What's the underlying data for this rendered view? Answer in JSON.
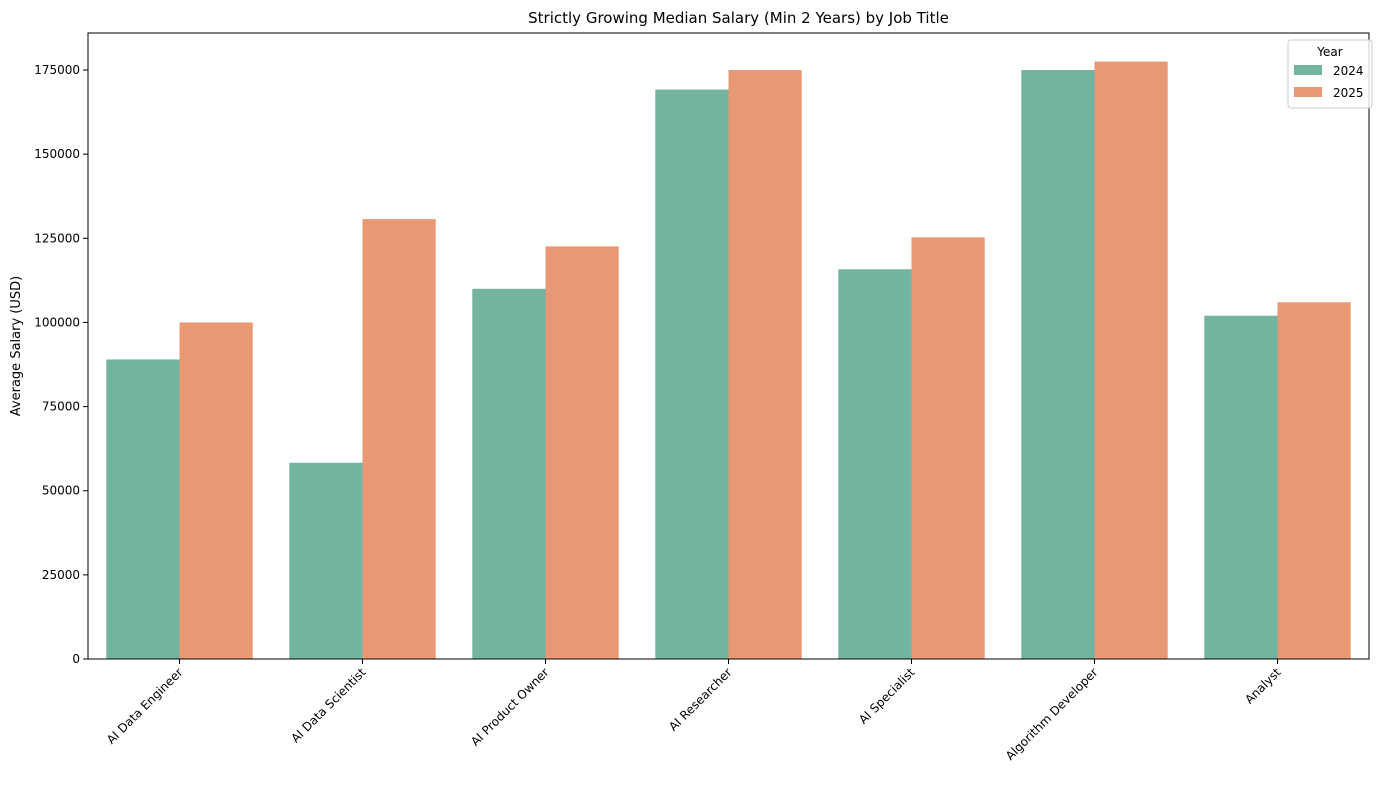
{
  "chart_data": {
    "type": "bar",
    "title": "Strictly Growing Median Salary (Min 2 Years) by Job Title",
    "xlabel": "",
    "ylabel": "Average Salary (USD)",
    "categories": [
      "AI Data Engineer",
      "AI Data Scientist",
      "AI Product Owner",
      "AI Researcher",
      "AI Specialist",
      "Algorithm Developer",
      "Analyst"
    ],
    "series": [
      {
        "name": "2024",
        "color": "#72b4a0",
        "values": [
          89000,
          58300,
          110000,
          169200,
          115800,
          175000,
          102000
        ]
      },
      {
        "name": "2025",
        "color": "#e89874",
        "values": [
          100000,
          130700,
          122600,
          175000,
          125300,
          177500,
          106000
        ]
      }
    ],
    "ylim": [
      0,
      186000
    ],
    "yticks": [
      0,
      25000,
      50000,
      75000,
      100000,
      125000,
      150000,
      175000
    ],
    "yticklabels": [
      "0",
      "25000",
      "50000",
      "75000",
      "100000",
      "125000",
      "150000",
      "175000"
    ],
    "legend": {
      "title": "Year",
      "placement": "top-right"
    },
    "grid": false
  }
}
